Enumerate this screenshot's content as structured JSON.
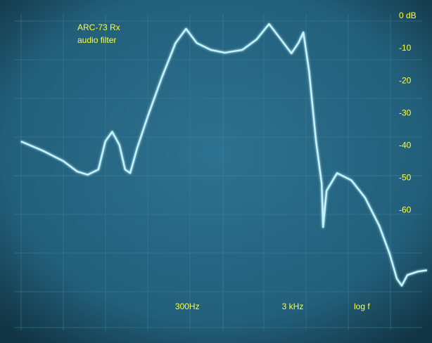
{
  "chart_data": {
    "type": "line",
    "title": [
      "ARC-73 Rx",
      "audio filter"
    ],
    "annotation": "log f",
    "log_x": true,
    "xlim": [
      5,
      63000
    ],
    "xticks": [
      {
        "value": 300,
        "label": "300Hz"
      },
      {
        "value": 3000,
        "label": "3 kHz"
      }
    ],
    "ylim": [
      -101,
      5
    ],
    "yticks": [
      {
        "value": 0,
        "label": "0 dB"
      },
      -10,
      -20,
      -30,
      -40,
      -50,
      -60
    ],
    "series": [
      {
        "color": "#c4f4ff",
        "x": [
          7.9,
          12.6,
          20,
          27,
          34,
          43,
          50,
          58,
          68,
          77,
          86,
          100,
          126,
          171,
          232,
          292,
          368,
          500,
          680,
          1000,
          1360,
          1790,
          2320,
          2920,
          3400,
          3790,
          4290,
          5000,
          5650,
          5830,
          6290,
          7920,
          10800,
          14600,
          19900,
          25000,
          29200,
          32500,
          36800,
          46300,
          56500
        ],
        "values": [
          -38.7,
          -41.5,
          -44.8,
          -48,
          -49,
          -47.4,
          -38.7,
          -35.7,
          -39.8,
          -47.4,
          -48.5,
          -40.9,
          -31.1,
          -19.1,
          -8.3,
          -3.9,
          -8.3,
          -10.4,
          -11.3,
          -10.4,
          -7.2,
          -2.4,
          -7.2,
          -11.5,
          -8.3,
          -5,
          -17,
          -38.7,
          -51.7,
          -65.2,
          -53.9,
          -48.5,
          -50.7,
          -56.1,
          -64.8,
          -73.5,
          -81.1,
          -83.3,
          -80,
          -78.9,
          -78.5
        ]
      }
    ]
  }
}
